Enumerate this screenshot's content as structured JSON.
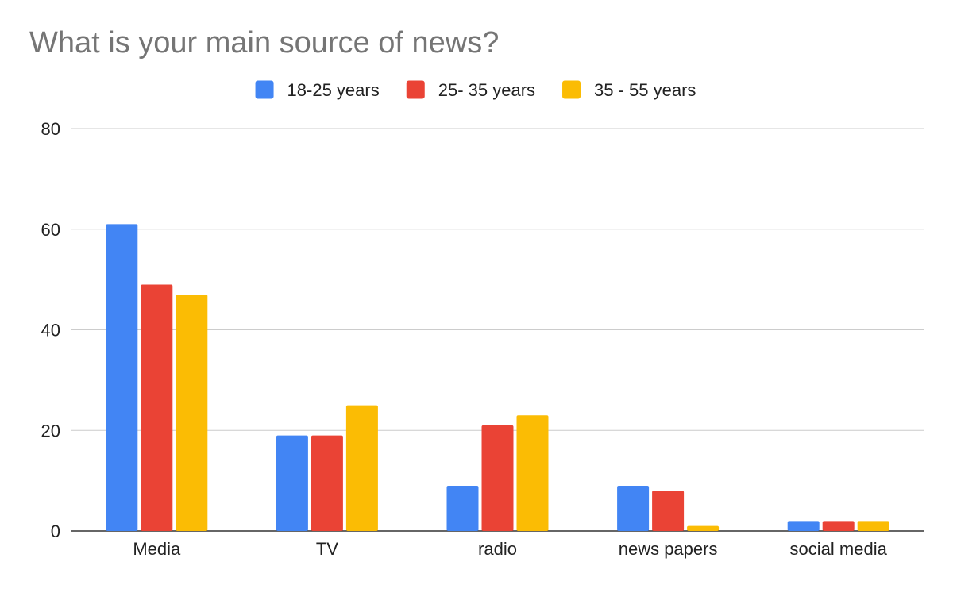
{
  "chart_data": {
    "type": "bar",
    "title": "What is your main source of news?",
    "xlabel": "",
    "ylabel": "",
    "categories": [
      "Media",
      "TV",
      "radio",
      "news papers",
      "social media"
    ],
    "series": [
      {
        "name": "18-25 years",
        "color": "#4285f4",
        "values": [
          61,
          19,
          9,
          9,
          2
        ]
      },
      {
        "name": "25- 35 years",
        "color": "#ea4335",
        "values": [
          49,
          19,
          21,
          8,
          2
        ]
      },
      {
        "name": "35 - 55 years",
        "color": "#fbbc04",
        "values": [
          47,
          25,
          23,
          1,
          2
        ]
      }
    ],
    "ylim": [
      0,
      80
    ],
    "yticks": [
      0,
      20,
      40,
      60,
      80
    ],
    "grid": true,
    "legend_position": "top"
  }
}
